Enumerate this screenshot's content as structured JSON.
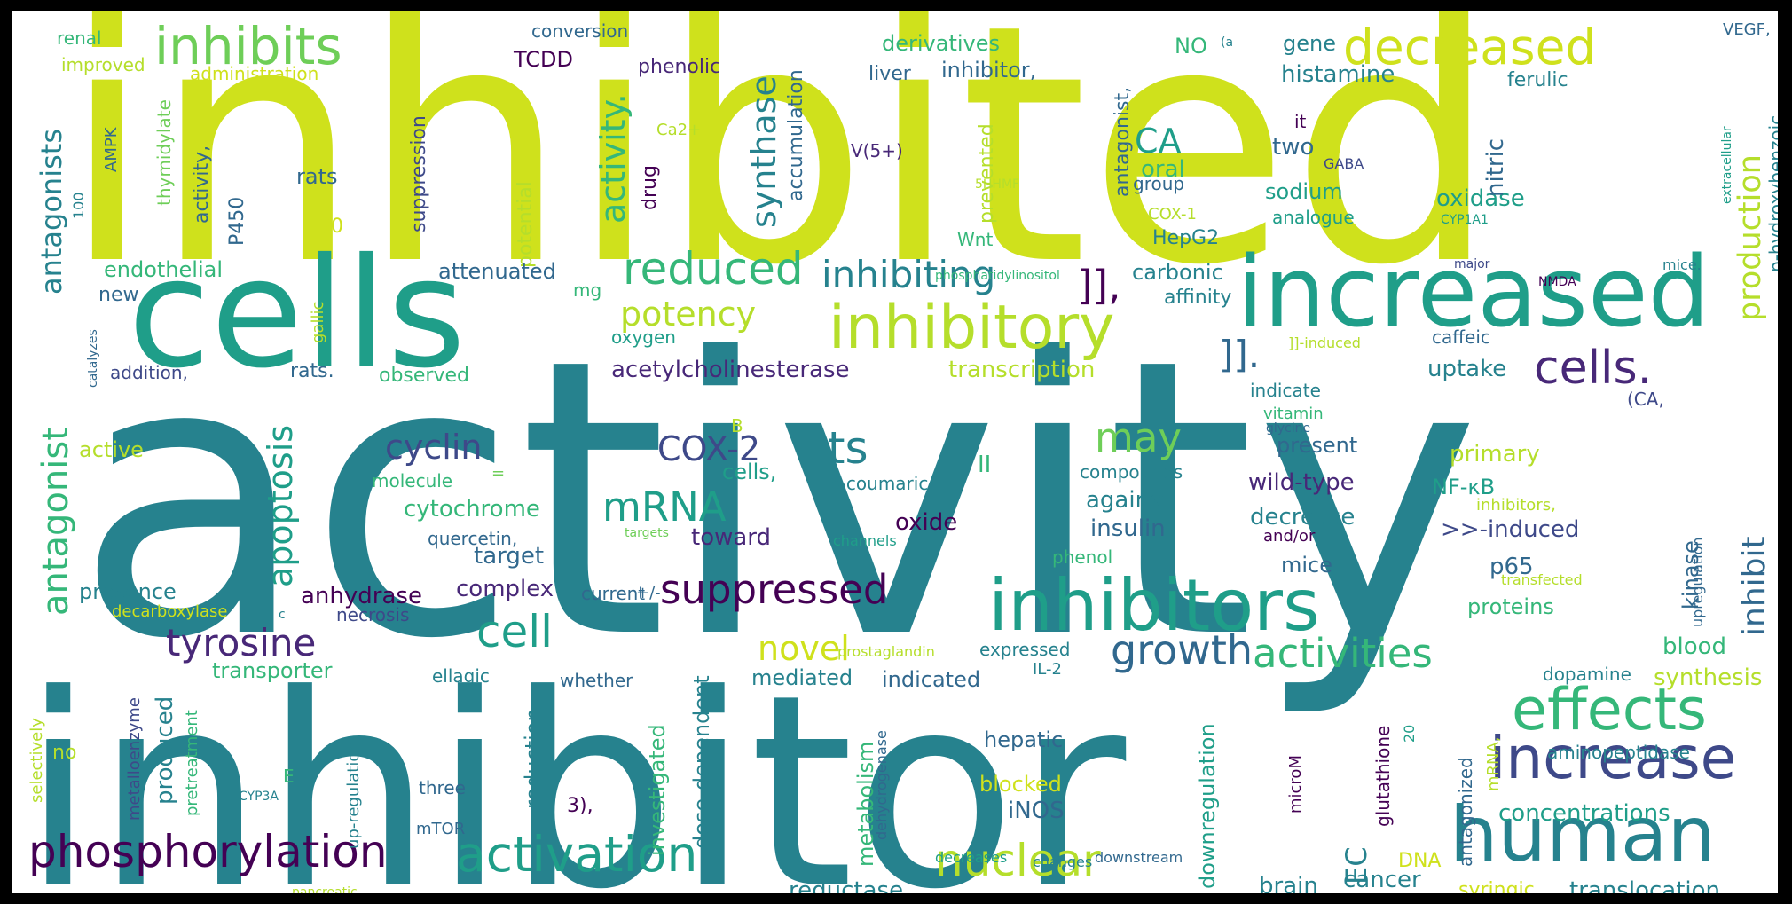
{
  "colors": {
    "c1": "#440154",
    "c2": "#482878",
    "c3": "#3e4989",
    "c4": "#31688e",
    "c5": "#26828e",
    "c6": "#1f9e89",
    "c7": "#35b779",
    "c8": "#6ece58",
    "c9": "#b5de2b",
    "c10": "#cfe11c"
  },
  "words": [
    {
      "text": "activity",
      "color": "#26828e"
    },
    {
      "text": "inhibited",
      "color": "#cfe11c"
    },
    {
      "text": "inhibitor",
      "color": "#26828e"
    },
    {
      "text": "cells",
      "color": "#1f9e89"
    },
    {
      "text": "increased",
      "color": "#1f9e89"
    },
    {
      "text": "inhibitors",
      "color": "#1f9e89"
    },
    {
      "text": "human",
      "color": "#26828e"
    },
    {
      "text": "inhibits",
      "color": "#6ece58"
    },
    {
      "text": "decreased",
      "color": "#cfe11c"
    },
    {
      "text": "inhibitory",
      "color": "#b5de2b"
    },
    {
      "text": "increase",
      "color": "#3e4989"
    },
    {
      "text": "effects",
      "color": "#35b779"
    },
    {
      "text": "cells.",
      "color": "#482878"
    },
    {
      "text": "phosphorylation",
      "color": "#440154"
    },
    {
      "text": "activation",
      "color": "#1f9e89"
    },
    {
      "text": "nuclear",
      "color": "#b5de2b"
    },
    {
      "text": "reduced",
      "color": "#35b779"
    },
    {
      "text": "inhibiting",
      "color": "#26828e"
    },
    {
      "text": "suppressed",
      "color": "#440154"
    },
    {
      "text": "tyrosine",
      "color": "#482878"
    },
    {
      "text": "growth",
      "color": "#31688e"
    },
    {
      "text": "activities",
      "color": "#35b779"
    },
    {
      "text": "cell",
      "color": "#1f9e89"
    },
    {
      "text": "mRNA",
      "color": "#1f9e89"
    },
    {
      "text": "its",
      "color": "#26828e"
    },
    {
      "text": "may",
      "color": "#6ece58"
    },
    {
      "text": "COX-2",
      "color": "#3e4989"
    },
    {
      "text": "cyclin",
      "color": "#3e4989"
    },
    {
      "text": "potency",
      "color": "#b5de2b"
    },
    {
      "text": "antagonist",
      "color": "#35b779"
    },
    {
      "text": "antagonists",
      "color": "#26828e"
    },
    {
      "text": "apoptosis",
      "color": "#1f9e89"
    },
    {
      "text": "production",
      "color": "#b5de2b"
    },
    {
      "text": "synthase",
      "color": "#26828e"
    },
    {
      "text": "activity.",
      "color": "#35b779"
    },
    {
      "text": "inhibit",
      "color": "#31688e"
    },
    {
      "text": "novel",
      "color": "#cfe11c"
    },
    {
      "text": "CA",
      "color": "#1f9e89"
    },
    {
      "text": "]],",
      "color": "#440154"
    },
    {
      "text": "]].",
      "color": "#31688e"
    },
    {
      "text": "EC",
      "color": "#26828e"
    },
    {
      "text": "concentrations",
      "color": "#1f9e89"
    },
    {
      "text": "translocation",
      "color": "#26828e"
    },
    {
      "text": "reductase",
      "color": "#26828e"
    },
    {
      "text": "brain",
      "color": "#26828e"
    },
    {
      "text": "cancer",
      "color": "#26828e"
    },
    {
      "text": "DNA",
      "color": "#cfe11c"
    },
    {
      "text": "syringic",
      "color": "#cfe11c"
    },
    {
      "text": "acetylcholinesterase",
      "color": "#482878"
    },
    {
      "text": "transcription",
      "color": "#b5de2b"
    },
    {
      "text": "uptake",
      "color": "#26828e"
    },
    {
      "text": "cytochrome",
      "color": "#35b779"
    },
    {
      "text": "target",
      "color": "#31688e"
    },
    {
      "text": "complex",
      "color": "#482878"
    },
    {
      "text": "anhydrase",
      "color": "#440154"
    },
    {
      "text": "presence",
      "color": "#26828e"
    },
    {
      "text": "transporter",
      "color": "#35b779"
    },
    {
      "text": "produced",
      "color": "#26828e"
    },
    {
      "text": "reduction",
      "color": "#26828e"
    },
    {
      "text": "investigated",
      "color": "#35b779"
    },
    {
      "text": "dose-dependent",
      "color": "#26828e"
    },
    {
      "text": "mediated",
      "color": "#26828e"
    },
    {
      "text": "indicated",
      "color": "#31688e"
    },
    {
      "text": "hepatic",
      "color": "#31688e"
    },
    {
      "text": "blocked",
      "color": "#cfe11c"
    },
    {
      "text": "iNOS",
      "color": "#31688e"
    },
    {
      "text": "metabolism",
      "color": "#35b779"
    },
    {
      "text": "oxide",
      "color": "#440154"
    },
    {
      "text": "toward",
      "color": "#482878"
    },
    {
      "text": "against",
      "color": "#26828e"
    },
    {
      "text": "insulin",
      "color": "#31688e"
    },
    {
      "text": "decrease",
      "color": "#26828e"
    },
    {
      "text": "wild-type",
      "color": "#482878"
    },
    {
      "text": "present",
      "color": "#31688e"
    },
    {
      "text": "primary",
      "color": "#b5de2b"
    },
    {
      "text": "NF-κB",
      "color": "#1f9e89"
    },
    {
      "text": ">>-induced",
      "color": "#3e4989"
    },
    {
      "text": "p65",
      "color": "#31688e"
    },
    {
      "text": "mice",
      "color": "#31688e"
    },
    {
      "text": "proteins",
      "color": "#35b779"
    },
    {
      "text": "blood",
      "color": "#35b779"
    },
    {
      "text": "synthesis",
      "color": "#b5de2b"
    },
    {
      "text": "kinase",
      "color": "#31688e"
    },
    {
      "text": "oxidase",
      "color": "#1f9e89"
    },
    {
      "text": "nitric",
      "color": "#31688e"
    },
    {
      "text": "sodium",
      "color": "#1f9e89"
    },
    {
      "text": "two",
      "color": "#31688e"
    },
    {
      "text": "histamine",
      "color": "#26828e"
    },
    {
      "text": "gene",
      "color": "#26828e"
    },
    {
      "text": "ferulic",
      "color": "#26828e"
    },
    {
      "text": "oral",
      "color": "#35b779"
    },
    {
      "text": "HepG2",
      "color": "#26828e"
    },
    {
      "text": "carbonic",
      "color": "#26828e"
    },
    {
      "text": "affinity",
      "color": "#26828e"
    },
    {
      "text": "antagonist,",
      "color": "#31688e"
    },
    {
      "text": "inhibitor,",
      "color": "#31688e"
    },
    {
      "text": "liver",
      "color": "#31688e"
    },
    {
      "text": "derivatives",
      "color": "#35b779"
    },
    {
      "text": "NO",
      "color": "#35b779"
    },
    {
      "text": "prevented",
      "color": "#b5de2b"
    },
    {
      "text": "Wnt",
      "color": "#35b779"
    },
    {
      "text": "accumulation",
      "color": "#31688e"
    },
    {
      "text": "TCDD",
      "color": "#440154"
    },
    {
      "text": "phenolic",
      "color": "#482878"
    },
    {
      "text": "conversion",
      "color": "#31688e"
    },
    {
      "text": "drug",
      "color": "#440154"
    },
    {
      "text": "potential",
      "color": "#b5de2b"
    },
    {
      "text": "suppression",
      "color": "#3e4989"
    },
    {
      "text": "rats",
      "color": "#31688e"
    },
    {
      "text": "30",
      "color": "#cfe11c"
    },
    {
      "text": "P450",
      "color": "#31688e"
    },
    {
      "text": "activity,",
      "color": "#31688e"
    },
    {
      "text": "thymidylate",
      "color": "#6ece58"
    },
    {
      "text": "AMPK",
      "color": "#31688e"
    },
    {
      "text": "100",
      "color": "#26828e"
    },
    {
      "text": "endothelial",
      "color": "#35b779"
    },
    {
      "text": "new",
      "color": "#31688e"
    },
    {
      "text": "attenuated",
      "color": "#31688e"
    },
    {
      "text": "mg",
      "color": "#35b779"
    },
    {
      "text": "gallic",
      "color": "#b5de2b"
    },
    {
      "text": "oxygen",
      "color": "#1f9e89"
    },
    {
      "text": "addition,",
      "color": "#3e4989"
    },
    {
      "text": "rats.",
      "color": "#31688e"
    },
    {
      "text": "observed",
      "color": "#35b779"
    },
    {
      "text": "active",
      "color": "#b5de2b"
    },
    {
      "text": "molecule",
      "color": "#35b779"
    },
    {
      "text": "=",
      "color": "#6ece58"
    },
    {
      "text": "quercetin,",
      "color": "#31688e"
    },
    {
      "text": "decarboxylase",
      "color": "#cfe11c"
    },
    {
      "text": "necrosis",
      "color": "#3e4989"
    },
    {
      "text": "current",
      "color": "#31688e"
    },
    {
      "text": "+/-",
      "color": "#31688e"
    },
    {
      "text": "whether",
      "color": "#31688e"
    },
    {
      "text": "ellagic",
      "color": "#26828e"
    },
    {
      "text": "no",
      "color": "#b5de2b"
    },
    {
      "text": "metalloenzyme",
      "color": "#3e4989"
    },
    {
      "text": "pretreatment",
      "color": "#35b779"
    },
    {
      "text": "up-regulation",
      "color": "#26828e"
    },
    {
      "text": "three",
      "color": "#31688e"
    },
    {
      "text": "3),",
      "color": "#440154"
    },
    {
      "text": "mTOR",
      "color": "#31688e"
    },
    {
      "text": "E",
      "color": "#35b779"
    },
    {
      "text": "CYP3A",
      "color": "#26828e"
    },
    {
      "text": "selectively",
      "color": "#b5de2b"
    },
    {
      "text": "pancreatic",
      "color": "#b5de2b"
    },
    {
      "text": "decreases",
      "color": "#1f9e89"
    },
    {
      "text": "downstream",
      "color": "#31688e"
    },
    {
      "text": "changes",
      "color": "#26828e"
    },
    {
      "text": "dehydrogenase",
      "color": "#31688e"
    },
    {
      "text": "IL-2",
      "color": "#26828e"
    },
    {
      "text": "expressed",
      "color": "#26828e"
    },
    {
      "text": "prostaglandin",
      "color": "#b5de2b"
    },
    {
      "text": "downregulation",
      "color": "#1f9e89"
    },
    {
      "text": "microM",
      "color": "#440154"
    },
    {
      "text": "glutathione",
      "color": "#440154"
    },
    {
      "text": "20",
      "color": "#1f9e89"
    },
    {
      "text": "antagonized",
      "color": "#31688e"
    },
    {
      "text": "mRNA,",
      "color": "#b5de2b"
    },
    {
      "text": "aminopeptidase",
      "color": "#26828e"
    },
    {
      "text": "dopamine",
      "color": "#26828e"
    },
    {
      "text": "transfected",
      "color": "#b5de2b"
    },
    {
      "text": "upregulation",
      "color": "#31688e"
    },
    {
      "text": "and/or",
      "color": "#440154"
    },
    {
      "text": "inhibitors,",
      "color": "#b5de2b"
    },
    {
      "text": "phenol",
      "color": "#35b779"
    },
    {
      "text": "channels",
      "color": "#1f9e89"
    },
    {
      "text": "targets",
      "color": "#6ece58"
    },
    {
      "text": "cells,",
      "color": "#1f9e89"
    },
    {
      "text": "p-coumaric",
      "color": "#26828e"
    },
    {
      "text": "II",
      "color": "#35b779"
    },
    {
      "text": "B",
      "color": "#b5de2b"
    },
    {
      "text": "compounds",
      "color": "#26828e"
    },
    {
      "text": "vitamin",
      "color": "#35b779"
    },
    {
      "text": "glycine",
      "color": "#31688e"
    },
    {
      "text": "indicate",
      "color": "#26828e"
    },
    {
      "text": "(CA,",
      "color": "#3e4989"
    },
    {
      "text": "caffeic",
      "color": "#31688e"
    },
    {
      "text": "]]-induced",
      "color": "#b5de2b"
    },
    {
      "text": "phosphatidylinositol",
      "color": "#35b779"
    },
    {
      "text": "major",
      "color": "#3e4989"
    },
    {
      "text": "NMDA",
      "color": "#440154"
    },
    {
      "text": "mice.",
      "color": "#26828e"
    },
    {
      "text": "group",
      "color": "#31688e"
    },
    {
      "text": "COX-1",
      "color": "#b5de2b"
    },
    {
      "text": "analogue",
      "color": "#1f9e89"
    },
    {
      "text": "it",
      "color": "#440154"
    },
    {
      "text": "GABA",
      "color": "#3e4989"
    },
    {
      "text": "CYP1A1",
      "color": "#1f9e89"
    },
    {
      "text": "extracellular",
      "color": "#1f9e89"
    },
    {
      "text": "p-hydroxybenzoic",
      "color": "#26828e"
    },
    {
      "text": "VEGF,",
      "color": "#31688e"
    },
    {
      "text": "5HHMF",
      "color": "#b5de2b"
    },
    {
      "text": "V(5+)",
      "color": "#482878"
    },
    {
      "text": "Ca2+",
      "color": "#b5de2b"
    },
    {
      "text": "(a",
      "color": "#26828e"
    },
    {
      "text": "renal",
      "color": "#35b779"
    },
    {
      "text": "improved",
      "color": "#b5de2b"
    },
    {
      "text": "administration",
      "color": "#cfe11c"
    },
    {
      "text": "catalyzes",
      "color": "#31688e"
    },
    {
      "text": "c",
      "color": "#26828e"
    }
  ]
}
